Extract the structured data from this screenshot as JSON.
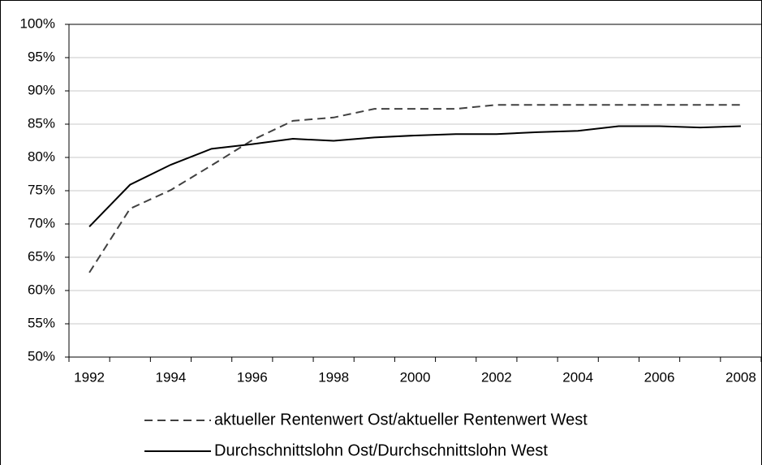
{
  "chart_data": {
    "type": "line",
    "categories": [
      "1992",
      null,
      "1994",
      null,
      "1996",
      null,
      "1998",
      null,
      "2000",
      null,
      "2002",
      null,
      "2004",
      null,
      "2006",
      null,
      "2008"
    ],
    "series": [
      {
        "name": "aktueller Rentenwert Ost/aktueller Rentenwert West",
        "color": "#404040",
        "line_style": "dashed",
        "values": [
          62.7,
          72.3,
          75.1,
          78.8,
          82.6,
          85.5,
          86.0,
          87.3,
          87.3,
          87.3,
          87.9,
          87.9,
          87.9,
          87.9,
          87.9,
          87.9,
          87.9
        ]
      },
      {
        "name": "Durchschnittslohn Ost/Durchschnittslohn West",
        "color": "#000000",
        "line_style": "solid",
        "values": [
          69.6,
          75.9,
          78.9,
          81.3,
          82.0,
          82.8,
          82.5,
          83.0,
          83.3,
          83.5,
          83.5,
          83.8,
          84.0,
          84.7,
          84.7,
          84.5,
          84.7
        ]
      }
    ],
    "ylim": [
      50,
      100
    ],
    "yticks": [
      {
        "value": 50,
        "label": "50%"
      },
      {
        "value": 55,
        "label": "55%"
      },
      {
        "value": 60,
        "label": "60%"
      },
      {
        "value": 65,
        "label": "65%"
      },
      {
        "value": 70,
        "label": "70%"
      },
      {
        "value": 75,
        "label": "75%"
      },
      {
        "value": 80,
        "label": "80%"
      },
      {
        "value": 85,
        "label": "85%"
      },
      {
        "value": 90,
        "label": "90%"
      },
      {
        "value": 95,
        "label": "95%"
      },
      {
        "value": 100,
        "label": "100%"
      }
    ],
    "grid": true,
    "legend": "bottom"
  }
}
